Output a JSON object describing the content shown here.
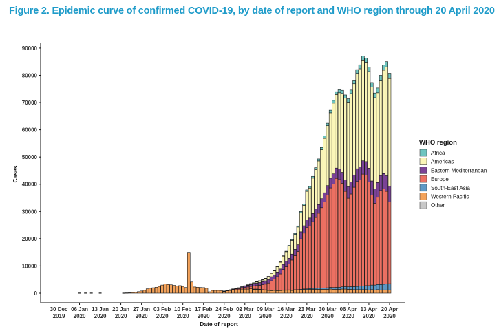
{
  "figure_title": "Figure 2. Epidemic curve of confirmed COVID-19, by date of report and WHO region through 20 April 2020",
  "colors": {
    "Africa": "#6fc5bf",
    "Americas": "#fbf6b8",
    "Eastern Mediterranean": "#7b4397",
    "Europe": "#ec7062",
    "South-East Asia": "#5d99c6",
    "Western Pacific": "#f4a35b",
    "Other": "#c8c8c8"
  },
  "chart_data": {
    "type": "bar",
    "stacked": true,
    "xlabel": "Date of report",
    "ylabel": "Cases",
    "ylim": [
      0,
      92000
    ],
    "yticks": [
      0,
      10000,
      20000,
      30000,
      40000,
      50000,
      60000,
      70000,
      80000,
      90000
    ],
    "xtick_labels": [
      {
        "day": 0,
        "line1": "30 Dec",
        "line2": "2019"
      },
      {
        "day": 7,
        "line1": "06 Jan",
        "line2": "2020"
      },
      {
        "day": 14,
        "line1": "13 Jan",
        "line2": "2020"
      },
      {
        "day": 21,
        "line1": "20 Jan",
        "line2": "2020"
      },
      {
        "day": 28,
        "line1": "27 Jan",
        "line2": "2020"
      },
      {
        "day": 35,
        "line1": "03 Feb",
        "line2": "2020"
      },
      {
        "day": 42,
        "line1": "10 Feb",
        "line2": "2020"
      },
      {
        "day": 49,
        "line1": "17 Feb",
        "line2": "2020"
      },
      {
        "day": 56,
        "line1": "24 Feb",
        "line2": "2020"
      },
      {
        "day": 63,
        "line1": "02 Mar",
        "line2": "2020"
      },
      {
        "day": 70,
        "line1": "09 Mar",
        "line2": "2020"
      },
      {
        "day": 77,
        "line1": "16 Mar",
        "line2": "2020"
      },
      {
        "day": 84,
        "line1": "23 Mar",
        "line2": "2020"
      },
      {
        "day": 91,
        "line1": "30 Mar",
        "line2": "2020"
      },
      {
        "day": 98,
        "line1": "06 Apr",
        "line2": "2020"
      },
      {
        "day": 105,
        "line1": "13 Apr",
        "line2": "2020"
      },
      {
        "day": 112,
        "line1": "20 Apr",
        "line2": "2020"
      }
    ],
    "legend": {
      "title": "WHO region",
      "placement": "right",
      "entries": [
        "Africa",
        "Americas",
        "Eastern Mediterranean",
        "Europe",
        "South-East Asia",
        "Western Pacific",
        "Other"
      ]
    },
    "series_order": [
      "Western Pacific",
      "South-East Asia",
      "Europe",
      "Eastern Mediterranean",
      "Americas",
      "Africa",
      "Other"
    ],
    "start_date": "30 Dec 2019",
    "end_date": "20 Apr 2020",
    "Western Pacific": [
      0,
      0,
      0,
      0,
      0,
      0,
      0,
      0,
      0,
      0,
      0,
      0,
      0,
      0,
      0,
      0,
      0,
      0,
      0,
      0,
      0,
      0,
      80,
      120,
      150,
      250,
      350,
      550,
      800,
      1050,
      1600,
      1800,
      2000,
      2200,
      2500,
      3000,
      3400,
      3200,
      3100,
      2900,
      2600,
      2800,
      2500,
      2100,
      15000,
      4100,
      2300,
      2200,
      2100,
      2050,
      1800,
      500,
      1000,
      1000,
      1000,
      900,
      700,
      900,
      1000,
      1200,
      1300,
      1300,
      1500,
      1500,
      1500,
      1600,
      1500,
      1500,
      1400,
      1300,
      1200,
      1100,
      1000,
      1100,
      1000,
      1000,
      1100,
      1100,
      1100,
      1000,
      1100,
      1100,
      1200,
      1300,
      1300,
      1400,
      1400,
      1400,
      1400,
      1400,
      1400,
      1400,
      1500,
      1400,
      1400,
      1400,
      1500,
      1500,
      1400,
      1400,
      1300,
      1300,
      1300,
      1300,
      1300,
      1200,
      1300,
      1200,
      1300,
      1200,
      1200,
      1200,
      1200
    ],
    "South-East Asia": [
      0,
      0,
      0,
      0,
      0,
      0,
      0,
      0,
      0,
      0,
      0,
      0,
      0,
      0,
      0,
      0,
      0,
      0,
      0,
      0,
      0,
      0,
      0,
      0,
      0,
      0,
      0,
      0,
      0,
      0,
      0,
      0,
      0,
      0,
      0,
      0,
      0,
      0,
      0,
      0,
      0,
      0,
      0,
      0,
      0,
      0,
      0,
      0,
      0,
      0,
      0,
      0,
      0,
      0,
      0,
      0,
      0,
      0,
      0,
      0,
      0,
      0,
      0,
      0,
      0,
      0,
      10,
      10,
      20,
      20,
      30,
      30,
      50,
      50,
      60,
      80,
      90,
      100,
      120,
      150,
      180,
      200,
      230,
      250,
      270,
      300,
      350,
      400,
      450,
      500,
      550,
      600,
      650,
      700,
      750,
      800,
      850,
      900,
      950,
      1000,
      1100,
      1200,
      1300,
      1400,
      1500,
      1600,
      1700,
      1800,
      1900,
      2000,
      2100,
      2200,
      2300,
      2400,
      2500,
      2600
    ],
    "Europe": [
      0,
      0,
      0,
      0,
      0,
      0,
      0,
      0,
      0,
      0,
      0,
      0,
      0,
      0,
      0,
      0,
      0,
      0,
      0,
      0,
      0,
      0,
      0,
      0,
      0,
      0,
      0,
      0,
      0,
      0,
      0,
      0,
      0,
      0,
      0,
      0,
      0,
      0,
      0,
      0,
      0,
      0,
      0,
      0,
      0,
      0,
      0,
      0,
      0,
      0,
      0,
      0,
      0,
      0,
      0,
      0,
      50,
      100,
      150,
      200,
      300,
      350,
      400,
      600,
      800,
      900,
      1100,
      1300,
      1500,
      1800,
      2100,
      2600,
      3500,
      4000,
      5000,
      6000,
      7500,
      8500,
      9500,
      11000,
      12500,
      14000,
      18500,
      20500,
      22500,
      23000,
      24500,
      26000,
      27500,
      29500,
      31500,
      34000,
      36500,
      38000,
      40000,
      39500,
      38000,
      35000,
      32500,
      34000,
      36500,
      38500,
      39000,
      41000,
      40500,
      38000,
      33000,
      30000,
      32000,
      34500,
      35000,
      34000,
      30000,
      27000
    ],
    "Eastern Mediterranean": [
      0,
      0,
      0,
      0,
      0,
      0,
      0,
      0,
      0,
      0,
      0,
      0,
      0,
      0,
      0,
      0,
      0,
      0,
      0,
      0,
      0,
      0,
      0,
      0,
      0,
      0,
      0,
      0,
      0,
      0,
      0,
      0,
      0,
      0,
      0,
      0,
      0,
      0,
      0,
      0,
      0,
      0,
      0,
      0,
      0,
      0,
      0,
      0,
      0,
      0,
      0,
      0,
      0,
      0,
      0,
      0,
      20,
      50,
      80,
      150,
      200,
      300,
      400,
      500,
      600,
      700,
      800,
      900,
      1000,
      1100,
      1200,
      1300,
      1500,
      1600,
      1700,
      1800,
      1900,
      2000,
      2100,
      2200,
      2300,
      2500,
      2600,
      2700,
      2800,
      2900,
      3000,
      3100,
      3200,
      3300,
      3400,
      3500,
      3600,
      3700,
      3800,
      3900,
      4000,
      4200,
      4300,
      4400,
      4500,
      4700,
      4800,
      4900,
      5000,
      5100,
      5200,
      5300,
      5400,
      5500,
      5600,
      5700,
      5800,
      5900,
      6000
    ],
    "Americas": [
      0,
      0,
      0,
      0,
      0,
      0,
      0,
      0,
      0,
      0,
      0,
      0,
      0,
      0,
      0,
      0,
      0,
      0,
      0,
      0,
      0,
      0,
      0,
      0,
      0,
      0,
      0,
      0,
      0,
      0,
      0,
      0,
      0,
      0,
      0,
      0,
      0,
      0,
      0,
      0,
      0,
      0,
      0,
      0,
      0,
      0,
      0,
      0,
      0,
      0,
      0,
      0,
      0,
      0,
      0,
      0,
      10,
      10,
      20,
      30,
      50,
      80,
      100,
      150,
      200,
      300,
      400,
      500,
      600,
      700,
      900,
      1100,
      1300,
      1500,
      2000,
      2500,
      3000,
      3500,
      4500,
      5000,
      5500,
      6500,
      7000,
      7500,
      10500,
      11000,
      13000,
      14500,
      16000,
      18000,
      20000,
      22000,
      24000,
      26000,
      27000,
      28000,
      29000,
      30000,
      31000,
      32500,
      33500,
      35000,
      36000,
      37000,
      36500,
      35500,
      34500,
      33500,
      33000,
      35000,
      38000,
      40000,
      39500,
      38000,
      37500,
      37000
    ],
    "Africa": [
      0,
      0,
      0,
      0,
      0,
      0,
      0,
      0,
      0,
      0,
      0,
      0,
      0,
      0,
      0,
      0,
      0,
      0,
      0,
      0,
      0,
      0,
      0,
      0,
      0,
      0,
      0,
      0,
      0,
      0,
      0,
      0,
      0,
      0,
      0,
      0,
      0,
      0,
      0,
      0,
      0,
      0,
      0,
      0,
      0,
      0,
      0,
      0,
      0,
      0,
      0,
      0,
      0,
      0,
      0,
      0,
      0,
      0,
      0,
      0,
      0,
      0,
      0,
      0,
      5,
      5,
      10,
      10,
      20,
      30,
      40,
      50,
      60,
      80,
      100,
      120,
      150,
      200,
      250,
      300,
      350,
      400,
      450,
      500,
      550,
      600,
      650,
      700,
      750,
      800,
      850,
      900,
      950,
      1000,
      1050,
      1100,
      1150,
      1200,
      1250,
      1300,
      1350,
      1400,
      1450,
      1500,
      1550,
      1600,
      1650,
      1700,
      1750,
      1800,
      1850,
      1900,
      1950,
      2000,
      2050
    ],
    "Other": []
  }
}
